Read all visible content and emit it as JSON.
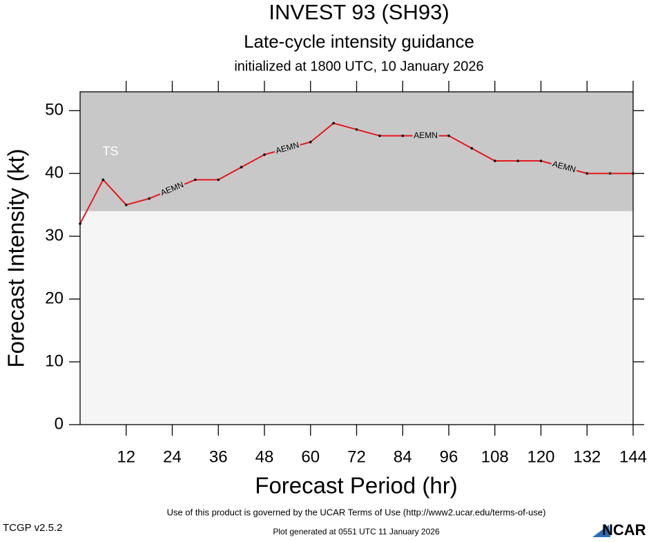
{
  "chart_data": {
    "type": "line",
    "title": "INVEST 93 (SH93)",
    "subtitle": "Late-cycle intensity guidance",
    "subtitle2": "initialized at 1800 UTC, 10 January 2026",
    "x_label": "Forecast Period (hr)",
    "y_label": "Forecast Intensity (kt)",
    "x": [
      0,
      6,
      12,
      18,
      24,
      30,
      36,
      42,
      48,
      54,
      60,
      66,
      72,
      78,
      84,
      90,
      96,
      102,
      108,
      114,
      120,
      126,
      132,
      138,
      144
    ],
    "series": [
      {
        "name": "AEMN",
        "color": "#e8151b",
        "values": [
          32,
          39,
          35,
          36,
          37.5,
          39,
          39,
          41,
          43,
          44,
          45,
          48,
          47,
          46,
          46,
          46,
          46,
          44,
          42,
          42,
          42,
          41,
          40,
          40,
          40
        ]
      }
    ],
    "xlim": [
      0,
      144
    ],
    "ylim": [
      0,
      53
    ],
    "xticks": [
      12,
      24,
      36,
      48,
      60,
      72,
      84,
      96,
      108,
      120,
      132,
      144
    ],
    "yticks": [
      0,
      10,
      20,
      30,
      40,
      50
    ],
    "band": {
      "label": "TS",
      "from": 34,
      "color": "#c8c8c8"
    },
    "footer": {
      "terms": "Use of this product is governed by the UCAR Terms of Use (http://www2.ucar.edu/terms-of-use)",
      "version": "TCGP v2.5.2",
      "generated": "Plot generated at 0551 UTC   11 January 2026",
      "logo": "NCAR"
    }
  }
}
